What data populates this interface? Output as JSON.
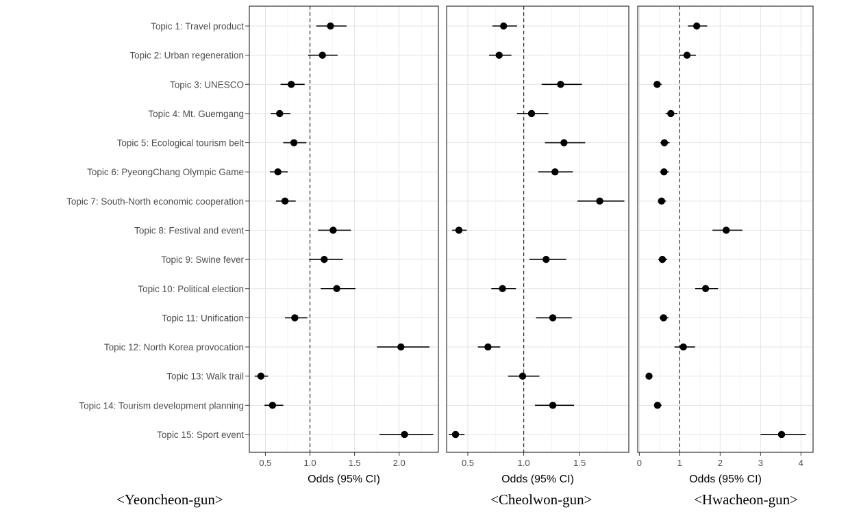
{
  "chart_data": {
    "type": "forest",
    "topics": [
      "Topic 1: Travel product",
      "Topic 2: Urban regeneration",
      "Topic 3: UNESCO",
      "Topic 4: Mt. Guemgang",
      "Topic 5: Ecological tourism belt",
      "Topic 6: PyeongChang Olympic Game",
      "Topic 7: South-North economic cooperation",
      "Topic 8: Festival and event",
      "Topic 9: Swine fever",
      "Topic 10: Political election",
      "Topic 11: Unification",
      "Topic 12: North Korea provocation",
      "Topic 13: Walk trail",
      "Topic 14: Tourism development planning",
      "Topic 15: Sport event"
    ],
    "grid": true,
    "reference_line": 1.0,
    "panels": [
      {
        "caption": "<Yeoncheon-gun>",
        "xlabel": "Odds (95% CI)",
        "xlim": [
          0.32,
          2.44
        ],
        "xticks": [
          0.5,
          1.0,
          1.5,
          2.0
        ],
        "xtick_labels": [
          "0.5",
          "1.0",
          "1.5",
          "2.0"
        ],
        "estimates": [
          {
            "odds": 1.23,
            "lower": 1.07,
            "upper": 1.41
          },
          {
            "odds": 1.14,
            "lower": 0.98,
            "upper": 1.31
          },
          {
            "odds": 0.79,
            "lower": 0.67,
            "upper": 0.94
          },
          {
            "odds": 0.66,
            "lower": 0.56,
            "upper": 0.78
          },
          {
            "odds": 0.82,
            "lower": 0.7,
            "upper": 0.96
          },
          {
            "odds": 0.64,
            "lower": 0.55,
            "upper": 0.75
          },
          {
            "odds": 0.72,
            "lower": 0.62,
            "upper": 0.84
          },
          {
            "odds": 1.26,
            "lower": 1.09,
            "upper": 1.46
          },
          {
            "odds": 1.16,
            "lower": 0.99,
            "upper": 1.37
          },
          {
            "odds": 1.3,
            "lower": 1.12,
            "upper": 1.51
          },
          {
            "odds": 0.83,
            "lower": 0.72,
            "upper": 0.97
          },
          {
            "odds": 2.02,
            "lower": 1.75,
            "upper": 2.34
          },
          {
            "odds": 0.45,
            "lower": 0.38,
            "upper": 0.53
          },
          {
            "odds": 0.58,
            "lower": 0.49,
            "upper": 0.7
          },
          {
            "odds": 2.06,
            "lower": 1.78,
            "upper": 2.38
          }
        ]
      },
      {
        "caption": "<Cheolwon-gun>",
        "xlabel": "Odds (95% CI)",
        "xlim": [
          0.31,
          1.94
        ],
        "xticks": [
          0.5,
          1.0,
          1.5
        ],
        "xtick_labels": [
          "0.5",
          "1.0",
          "1.5"
        ],
        "estimates": [
          {
            "odds": 0.82,
            "lower": 0.72,
            "upper": 0.94
          },
          {
            "odds": 0.78,
            "lower": 0.69,
            "upper": 0.89
          },
          {
            "odds": 1.33,
            "lower": 1.16,
            "upper": 1.52
          },
          {
            "odds": 1.07,
            "lower": 0.94,
            "upper": 1.22
          },
          {
            "odds": 1.36,
            "lower": 1.19,
            "upper": 1.55
          },
          {
            "odds": 1.28,
            "lower": 1.13,
            "upper": 1.44
          },
          {
            "odds": 1.68,
            "lower": 1.48,
            "upper": 1.9
          },
          {
            "odds": 0.42,
            "lower": 0.36,
            "upper": 0.49
          },
          {
            "odds": 1.2,
            "lower": 1.05,
            "upper": 1.38
          },
          {
            "odds": 0.81,
            "lower": 0.71,
            "upper": 0.93
          },
          {
            "odds": 1.26,
            "lower": 1.11,
            "upper": 1.43
          },
          {
            "odds": 0.68,
            "lower": 0.59,
            "upper": 0.79
          },
          {
            "odds": 0.99,
            "lower": 0.86,
            "upper": 1.14
          },
          {
            "odds": 1.26,
            "lower": 1.1,
            "upper": 1.45
          },
          {
            "odds": 0.39,
            "lower": 0.33,
            "upper": 0.47
          }
        ]
      },
      {
        "caption": "<Hwacheon-gun>",
        "xlabel": "Odds (95% CI)",
        "xlim": [
          -0.04,
          4.3
        ],
        "xticks": [
          0,
          1,
          2,
          3,
          4
        ],
        "xtick_labels": [
          "0",
          "1",
          "2",
          "3",
          "4"
        ],
        "estimates": [
          {
            "odds": 1.42,
            "lower": 1.2,
            "upper": 1.68
          },
          {
            "odds": 1.18,
            "lower": 1.0,
            "upper": 1.4
          },
          {
            "odds": 0.44,
            "lower": 0.36,
            "upper": 0.55
          },
          {
            "odds": 0.78,
            "lower": 0.65,
            "upper": 0.94
          },
          {
            "odds": 0.62,
            "lower": 0.52,
            "upper": 0.75
          },
          {
            "odds": 0.61,
            "lower": 0.51,
            "upper": 0.73
          },
          {
            "odds": 0.55,
            "lower": 0.46,
            "upper": 0.66
          },
          {
            "odds": 2.15,
            "lower": 1.81,
            "upper": 2.55
          },
          {
            "odds": 0.57,
            "lower": 0.47,
            "upper": 0.69
          },
          {
            "odds": 1.64,
            "lower": 1.38,
            "upper": 1.95
          },
          {
            "odds": 0.6,
            "lower": 0.5,
            "upper": 0.72
          },
          {
            "odds": 1.09,
            "lower": 0.87,
            "upper": 1.38
          },
          {
            "odds": 0.24,
            "lower": 0.19,
            "upper": 0.3
          },
          {
            "odds": 0.45,
            "lower": 0.37,
            "upper": 0.55
          },
          {
            "odds": 3.52,
            "lower": 3.0,
            "upper": 4.12
          }
        ]
      }
    ]
  }
}
